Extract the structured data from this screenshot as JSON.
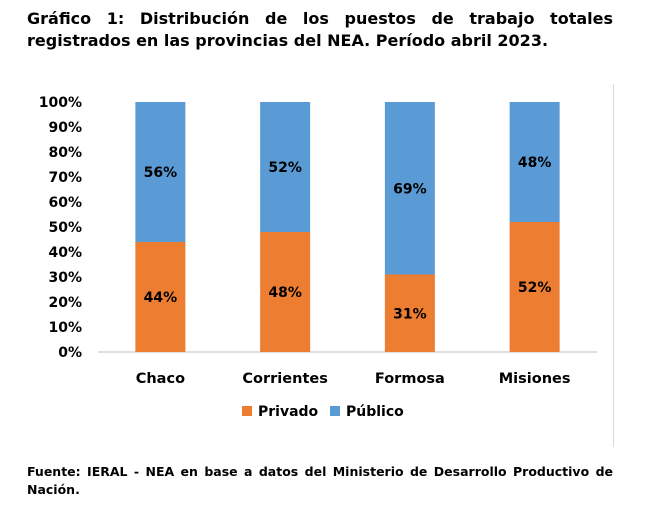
{
  "chart_data": {
    "type": "bar",
    "stacked": true,
    "title": "Gráfico 1: Distribución de los puestos de trabajo totales registrados en las provincias del NEA. Período abril 2023.",
    "categories": [
      "Chaco",
      "Corrientes",
      "Formosa",
      "Misiones"
    ],
    "series": [
      {
        "name": "Privado",
        "values": [
          44,
          48,
          31,
          52
        ],
        "labels": [
          "44%",
          "48%",
          "31%",
          "52%"
        ],
        "color": "#ed7d31"
      },
      {
        "name": "Público",
        "values": [
          56,
          52,
          69,
          48
        ],
        "labels": [
          "56%",
          "52%",
          "69%",
          "48%"
        ],
        "color": "#5b9bd5"
      }
    ],
    "ylim": [
      0,
      100
    ],
    "yticks": [
      "0%",
      "10%",
      "20%",
      "30%",
      "40%",
      "50%",
      "60%",
      "70%",
      "80%",
      "90%",
      "100%"
    ],
    "grid": false,
    "legend_position": "bottom"
  },
  "source": "Fuente: IERAL - NEA en base a datos del Ministerio de Desarrollo Productivo de Nación."
}
